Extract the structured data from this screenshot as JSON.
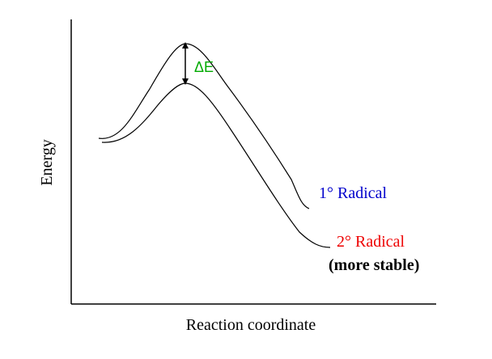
{
  "axes": {
    "ylabel": "Energy",
    "xlabel": "Reaction coordinate"
  },
  "curves": {
    "primary_label": "1° Radical",
    "secondary_label": "2° Radical",
    "secondary_note": "(more stable)"
  },
  "delta": {
    "label": "ΔE"
  },
  "colors": {
    "primary": "#0000cc",
    "secondary": "#ee0000",
    "delta": "#00aa00",
    "line": "#000000"
  }
}
